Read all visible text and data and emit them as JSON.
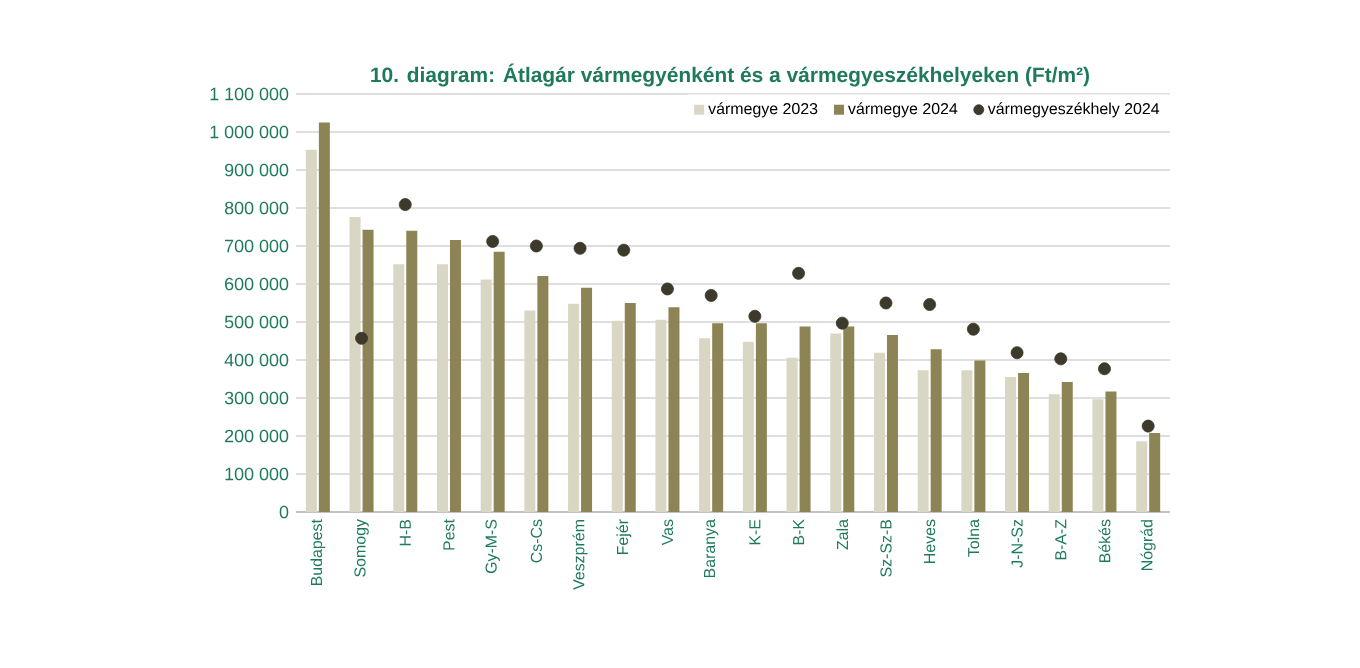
{
  "chart_data": {
    "type": "bar",
    "title": "10. diagram: Átlagár vármegyénként és a vármegyeszékhelyeken (Ft/m²)",
    "categories": [
      "Budapest",
      "Somogy",
      "H-B",
      "Pest",
      "Gy-M-S",
      "Cs-Cs",
      "Veszprém",
      "Fejér",
      "Vas",
      "Baranya",
      "K-E",
      "B-K",
      "Zala",
      "Sz-Sz-B",
      "Heves",
      "Tolna",
      "J-N-Sz",
      "B-A-Z",
      "Békés",
      "Nógrád"
    ],
    "series": [
      {
        "name": "vármegye 2023",
        "color": "#d9d6c3",
        "values": [
          953000,
          776000,
          652000,
          652000,
          612000,
          530000,
          548000,
          503000,
          506000,
          457000,
          448000,
          406000,
          470000,
          419000,
          373000,
          373000,
          355000,
          310000,
          297000,
          186000
        ]
      },
      {
        "name": "vármegye 2024",
        "color": "#8c8455",
        "values": [
          1025000,
          743000,
          740000,
          716000,
          685000,
          621000,
          590000,
          550000,
          539000,
          497000,
          497000,
          488000,
          488000,
          466000,
          428000,
          399000,
          366000,
          342000,
          317000,
          208000
        ]
      },
      {
        "name": "vármegyeszékhely 2024",
        "type": "scatter",
        "marker": "circle",
        "color": "#3d3a2b",
        "values": [
          null,
          457000,
          809000,
          null,
          712000,
          700000,
          694000,
          689000,
          587000,
          570000,
          515000,
          628000,
          497000,
          550000,
          546000,
          481000,
          419000,
          403000,
          377000,
          226000
        ]
      }
    ],
    "ylim": [
      0,
      1100000
    ],
    "yticks": [
      {
        "value": 0,
        "label": "0"
      },
      {
        "value": 100000,
        "label": "100 000"
      },
      {
        "value": 200000,
        "label": "200 000"
      },
      {
        "value": 300000,
        "label": "300 000"
      },
      {
        "value": 400000,
        "label": "400 000"
      },
      {
        "value": 500000,
        "label": "500 000"
      },
      {
        "value": 600000,
        "label": "600 000"
      },
      {
        "value": 700000,
        "label": "700 000"
      },
      {
        "value": 800000,
        "label": "800 000"
      },
      {
        "value": 900000,
        "label": "900 000"
      },
      {
        "value": 1000000,
        "label": "1 000 000"
      },
      {
        "value": 1100000,
        "label": "1 100 000"
      }
    ],
    "grid": "y",
    "legend": "top right"
  }
}
